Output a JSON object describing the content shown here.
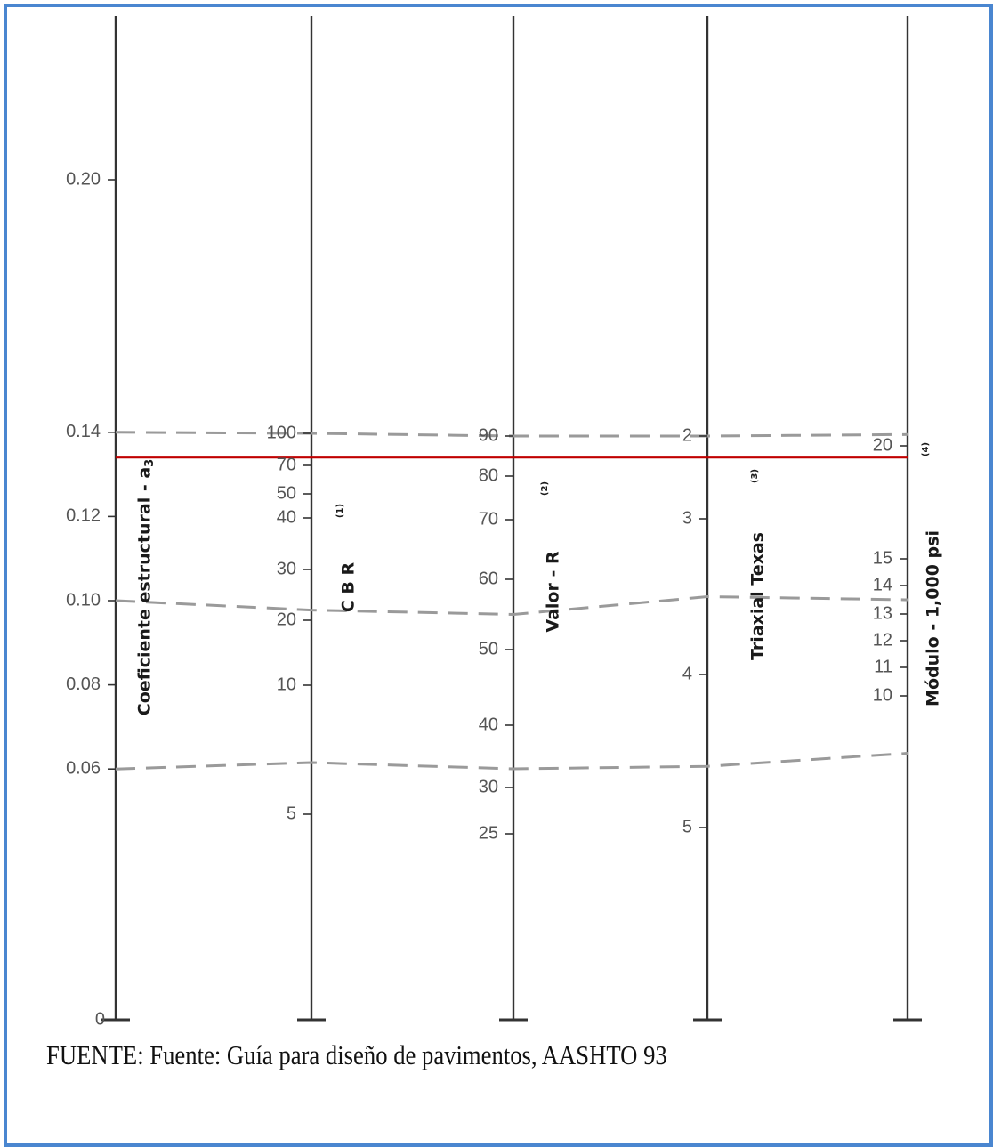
{
  "chart_data": {
    "type": "nomograph",
    "scales": [
      {
        "name": "Coeficiente estructural - a3",
        "title_main": "Coeficiente estructural  -  a",
        "title_sub": "3",
        "note": "",
        "ticks": [
          {
            "label": "0.20",
            "value": 0.2
          },
          {
            "label": "0.14",
            "value": 0.14
          },
          {
            "label": "0.12",
            "value": 0.12
          },
          {
            "label": "0.10",
            "value": 0.1
          },
          {
            "label": "0.08",
            "value": 0.08
          },
          {
            "label": "0.06",
            "value": 0.06
          },
          {
            "label": "0",
            "value": 0
          }
        ]
      },
      {
        "name": "CBR",
        "title_main": "C B R",
        "note": "(1)",
        "ticks": [
          {
            "label": "100",
            "value": 100
          },
          {
            "label": "70",
            "value": 70
          },
          {
            "label": "50",
            "value": 50
          },
          {
            "label": "40",
            "value": 40
          },
          {
            "label": "30",
            "value": 30
          },
          {
            "label": "20",
            "value": 20
          },
          {
            "label": "10",
            "value": 10
          },
          {
            "label": "5",
            "value": 5
          }
        ]
      },
      {
        "name": "Valor - R",
        "title_main": "Valor  -  R",
        "note": "(2)",
        "ticks": [
          {
            "label": "90",
            "value": 90
          },
          {
            "label": "80",
            "value": 80
          },
          {
            "label": "70",
            "value": 70
          },
          {
            "label": "60",
            "value": 60
          },
          {
            "label": "50",
            "value": 50
          },
          {
            "label": "40",
            "value": 40
          },
          {
            "label": "30",
            "value": 30
          },
          {
            "label": "25",
            "value": 25
          }
        ]
      },
      {
        "name": "Triaxial Texas",
        "title_main": "Triaxial Texas",
        "note": "(3)",
        "ticks": [
          {
            "label": "2",
            "value": 2
          },
          {
            "label": "3",
            "value": 3
          },
          {
            "label": "4",
            "value": 4
          },
          {
            "label": "5",
            "value": 5
          }
        ]
      },
      {
        "name": "Módulo - 1,000 psi",
        "title_main": "Módulo  -  1,000  psi",
        "note": "(4)",
        "ticks": [
          {
            "label": "20",
            "value": 20
          },
          {
            "label": "15",
            "value": 15
          },
          {
            "label": "14",
            "value": 14
          },
          {
            "label": "13",
            "value": 13
          },
          {
            "label": "12",
            "value": 12
          },
          {
            "label": "11",
            "value": 11
          },
          {
            "label": "10",
            "value": 10
          }
        ]
      }
    ],
    "reference_lines": [
      {
        "a3": 0.14,
        "cbr": 100,
        "r_value": 90,
        "texas_triaxial": 2,
        "modulus_ksi": 20.5
      },
      {
        "a3": 0.1,
        "cbr": 22,
        "r_value": 55,
        "texas_triaxial": 3.5,
        "modulus_ksi": 13.5
      },
      {
        "a3": 0.06,
        "cbr": 7,
        "r_value": 33,
        "texas_triaxial": 4.6,
        "modulus_ksi": 8.5
      }
    ],
    "highlight_line": {
      "a3": 0.134,
      "cbr": 75,
      "r_value": 85,
      "texas_triaxial": 2.3,
      "modulus_ksi": 19.5,
      "color": "#c00000"
    }
  },
  "source_text": "FUENTE: Fuente: Guía para diseño de pavimentos, AASHTO 93",
  "colors": {
    "frame": "#4a86d0",
    "axis": "#333333",
    "dashed": "#9a9a9a",
    "highlight": "#c00000"
  }
}
